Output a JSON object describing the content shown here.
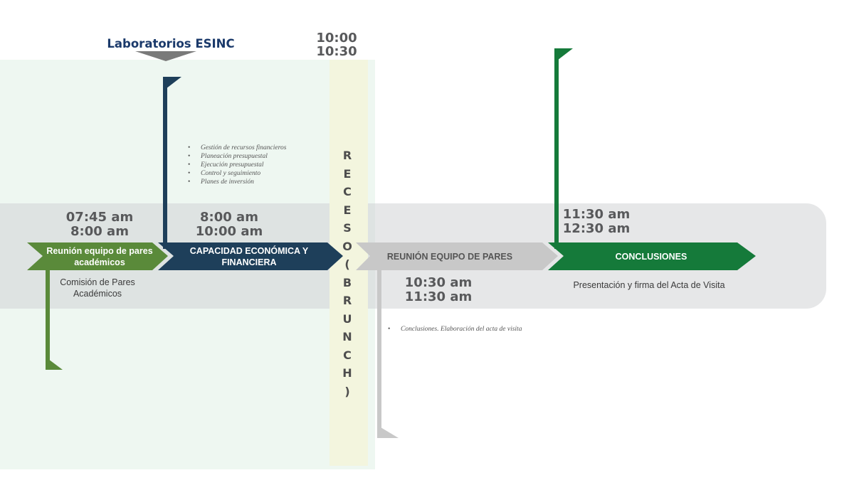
{
  "header": {
    "lab_title": "Laboratorios ESINC",
    "recess_time": "10:00\n10:30"
  },
  "recess": {
    "letters": [
      "R",
      "E",
      "C",
      "E",
      "S",
      "O",
      "(",
      "B",
      "R",
      "U",
      "N",
      "C",
      "H",
      ")"
    ]
  },
  "stages": [
    {
      "time": "07:45 am\n8:00 am",
      "label": "Reunión equipo de pares académicos",
      "caption": "Comisión de Pares Académicos",
      "color": "#5a8a3a"
    },
    {
      "time": "8:00 am\n10:00 am",
      "label": "CAPACIDAD ECONÓMICA Y FINANCIERA",
      "bullets": [
        "Gestión de recursos financieros",
        "Planeación presupuestal",
        "Ejecución presupuestal",
        "Control y seguimiento",
        "Planes de inversión"
      ],
      "color": "#1e3f5a"
    },
    {
      "time": "10:30 am\n11:30 am",
      "label": "REUNIÓN EQUIPO DE PARES",
      "bullets": [
        "Conclusiones. Elaboración del acta de visita"
      ],
      "color": "#c8c8c8"
    },
    {
      "time": "11:30 am\n12:30 am",
      "label": "CONCLUSIONES",
      "caption": "Presentación y firma del Acta de Visita",
      "color": "#157a3a"
    }
  ],
  "colors": {
    "green_zone": "#eef7f1",
    "recess_zone": "#f3f5de",
    "band": "#d2d4d6",
    "title": "#1b3a6b"
  }
}
